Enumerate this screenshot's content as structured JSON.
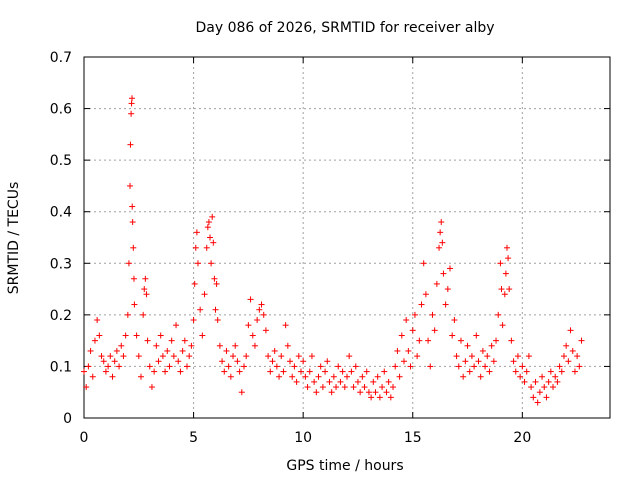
{
  "chart_data": {
    "type": "scatter",
    "title": "Day 086 of 2026, SRMTID for receiver alby",
    "xlabel": "GPS time / hours",
    "ylabel": "SRMTID / TECUs",
    "xlim": [
      0,
      24
    ],
    "ylim": [
      0,
      0.7
    ],
    "xticks": [
      0,
      5,
      10,
      15,
      20
    ],
    "yticks": [
      0,
      0.1,
      0.2,
      0.3,
      0.4,
      0.5,
      0.6,
      0.7
    ],
    "grid": true,
    "marker": "+",
    "color": "#ff0000",
    "series": [
      {
        "name": "SRMTID",
        "points": [
          [
            0.0,
            0.09
          ],
          [
            0.1,
            0.06
          ],
          [
            0.2,
            0.1
          ],
          [
            0.3,
            0.13
          ],
          [
            0.4,
            0.08
          ],
          [
            0.5,
            0.15
          ],
          [
            0.6,
            0.19
          ],
          [
            0.7,
            0.16
          ],
          [
            0.8,
            0.12
          ],
          [
            0.9,
            0.11
          ],
          [
            1.0,
            0.09
          ],
          [
            1.1,
            0.1
          ],
          [
            1.2,
            0.12
          ],
          [
            1.3,
            0.08
          ],
          [
            1.4,
            0.11
          ],
          [
            1.5,
            0.13
          ],
          [
            1.6,
            0.1
          ],
          [
            1.7,
            0.14
          ],
          [
            1.8,
            0.12
          ],
          [
            1.9,
            0.16
          ],
          [
            2.0,
            0.2
          ],
          [
            2.05,
            0.3
          ],
          [
            2.1,
            0.45
          ],
          [
            2.12,
            0.53
          ],
          [
            2.15,
            0.59
          ],
          [
            2.17,
            0.61
          ],
          [
            2.19,
            0.62
          ],
          [
            2.2,
            0.41
          ],
          [
            2.22,
            0.38
          ],
          [
            2.25,
            0.33
          ],
          [
            2.28,
            0.27
          ],
          [
            2.3,
            0.22
          ],
          [
            2.4,
            0.16
          ],
          [
            2.5,
            0.12
          ],
          [
            2.6,
            0.08
          ],
          [
            2.7,
            0.2
          ],
          [
            2.75,
            0.25
          ],
          [
            2.8,
            0.27
          ],
          [
            2.85,
            0.24
          ],
          [
            2.9,
            0.15
          ],
          [
            3.0,
            0.1
          ],
          [
            3.1,
            0.06
          ],
          [
            3.2,
            0.09
          ],
          [
            3.3,
            0.14
          ],
          [
            3.4,
            0.11
          ],
          [
            3.5,
            0.16
          ],
          [
            3.6,
            0.12
          ],
          [
            3.7,
            0.09
          ],
          [
            3.8,
            0.13
          ],
          [
            3.9,
            0.1
          ],
          [
            4.0,
            0.15
          ],
          [
            4.1,
            0.12
          ],
          [
            4.2,
            0.18
          ],
          [
            4.3,
            0.11
          ],
          [
            4.4,
            0.09
          ],
          [
            4.5,
            0.13
          ],
          [
            4.6,
            0.15
          ],
          [
            4.7,
            0.1
          ],
          [
            4.8,
            0.12
          ],
          [
            4.9,
            0.14
          ],
          [
            5.0,
            0.19
          ],
          [
            5.05,
            0.26
          ],
          [
            5.1,
            0.33
          ],
          [
            5.15,
            0.36
          ],
          [
            5.2,
            0.3
          ],
          [
            5.3,
            0.21
          ],
          [
            5.4,
            0.16
          ],
          [
            5.5,
            0.24
          ],
          [
            5.6,
            0.33
          ],
          [
            5.65,
            0.37
          ],
          [
            5.7,
            0.38
          ],
          [
            5.75,
            0.35
          ],
          [
            5.8,
            0.3
          ],
          [
            5.85,
            0.39
          ],
          [
            5.9,
            0.34
          ],
          [
            5.95,
            0.27
          ],
          [
            6.0,
            0.21
          ],
          [
            6.05,
            0.26
          ],
          [
            6.1,
            0.19
          ],
          [
            6.2,
            0.14
          ],
          [
            6.3,
            0.11
          ],
          [
            6.4,
            0.09
          ],
          [
            6.5,
            0.13
          ],
          [
            6.6,
            0.1
          ],
          [
            6.7,
            0.08
          ],
          [
            6.8,
            0.12
          ],
          [
            6.9,
            0.14
          ],
          [
            7.0,
            0.11
          ],
          [
            7.1,
            0.09
          ],
          [
            7.2,
            0.05
          ],
          [
            7.3,
            0.1
          ],
          [
            7.4,
            0.12
          ],
          [
            7.5,
            0.18
          ],
          [
            7.6,
            0.23
          ],
          [
            7.7,
            0.16
          ],
          [
            7.8,
            0.14
          ],
          [
            7.9,
            0.19
          ],
          [
            8.0,
            0.21
          ],
          [
            8.1,
            0.22
          ],
          [
            8.2,
            0.2
          ],
          [
            8.3,
            0.17
          ],
          [
            8.4,
            0.12
          ],
          [
            8.5,
            0.09
          ],
          [
            8.6,
            0.11
          ],
          [
            8.7,
            0.13
          ],
          [
            8.8,
            0.1
          ],
          [
            8.9,
            0.08
          ],
          [
            9.0,
            0.12
          ],
          [
            9.1,
            0.09
          ],
          [
            9.2,
            0.18
          ],
          [
            9.3,
            0.14
          ],
          [
            9.4,
            0.11
          ],
          [
            9.5,
            0.08
          ],
          [
            9.6,
            0.1
          ],
          [
            9.7,
            0.07
          ],
          [
            9.8,
            0.12
          ],
          [
            9.9,
            0.09
          ],
          [
            10.0,
            0.11
          ],
          [
            10.1,
            0.08
          ],
          [
            10.2,
            0.06
          ],
          [
            10.3,
            0.09
          ],
          [
            10.4,
            0.12
          ],
          [
            10.5,
            0.07
          ],
          [
            10.6,
            0.05
          ],
          [
            10.7,
            0.08
          ],
          [
            10.8,
            0.1
          ],
          [
            10.9,
            0.06
          ],
          [
            11.0,
            0.09
          ],
          [
            11.1,
            0.11
          ],
          [
            11.2,
            0.07
          ],
          [
            11.3,
            0.05
          ],
          [
            11.4,
            0.08
          ],
          [
            11.5,
            0.06
          ],
          [
            11.6,
            0.1
          ],
          [
            11.7,
            0.07
          ],
          [
            11.8,
            0.09
          ],
          [
            11.9,
            0.06
          ],
          [
            12.0,
            0.08
          ],
          [
            12.1,
            0.12
          ],
          [
            12.2,
            0.09
          ],
          [
            12.3,
            0.06
          ],
          [
            12.4,
            0.1
          ],
          [
            12.5,
            0.07
          ],
          [
            12.6,
            0.05
          ],
          [
            12.7,
            0.08
          ],
          [
            12.8,
            0.06
          ],
          [
            12.9,
            0.09
          ],
          [
            13.0,
            0.05
          ],
          [
            13.1,
            0.04
          ],
          [
            13.2,
            0.07
          ],
          [
            13.3,
            0.05
          ],
          [
            13.4,
            0.08
          ],
          [
            13.5,
            0.04
          ],
          [
            13.6,
            0.06
          ],
          [
            13.7,
            0.09
          ],
          [
            13.8,
            0.05
          ],
          [
            13.9,
            0.07
          ],
          [
            14.0,
            0.04
          ],
          [
            14.1,
            0.06
          ],
          [
            14.2,
            0.1
          ],
          [
            14.3,
            0.13
          ],
          [
            14.4,
            0.08
          ],
          [
            14.5,
            0.16
          ],
          [
            14.6,
            0.11
          ],
          [
            14.7,
            0.19
          ],
          [
            14.8,
            0.13
          ],
          [
            14.9,
            0.1
          ],
          [
            15.0,
            0.17
          ],
          [
            15.1,
            0.2
          ],
          [
            15.2,
            0.12
          ],
          [
            15.3,
            0.15
          ],
          [
            15.4,
            0.22
          ],
          [
            15.5,
            0.3
          ],
          [
            15.6,
            0.24
          ],
          [
            15.7,
            0.15
          ],
          [
            15.8,
            0.1
          ],
          [
            15.9,
            0.2
          ],
          [
            16.0,
            0.17
          ],
          [
            16.1,
            0.26
          ],
          [
            16.2,
            0.33
          ],
          [
            16.25,
            0.36
          ],
          [
            16.3,
            0.38
          ],
          [
            16.35,
            0.34
          ],
          [
            16.4,
            0.28
          ],
          [
            16.5,
            0.22
          ],
          [
            16.6,
            0.25
          ],
          [
            16.7,
            0.29
          ],
          [
            16.8,
            0.16
          ],
          [
            16.9,
            0.19
          ],
          [
            17.0,
            0.12
          ],
          [
            17.1,
            0.1
          ],
          [
            17.2,
            0.15
          ],
          [
            17.3,
            0.08
          ],
          [
            17.4,
            0.11
          ],
          [
            17.5,
            0.14
          ],
          [
            17.6,
            0.09
          ],
          [
            17.7,
            0.12
          ],
          [
            17.8,
            0.1
          ],
          [
            17.9,
            0.16
          ],
          [
            18.0,
            0.11
          ],
          [
            18.1,
            0.08
          ],
          [
            18.2,
            0.13
          ],
          [
            18.3,
            0.1
          ],
          [
            18.4,
            0.12
          ],
          [
            18.5,
            0.09
          ],
          [
            18.6,
            0.14
          ],
          [
            18.7,
            0.11
          ],
          [
            18.8,
            0.15
          ],
          [
            18.9,
            0.2
          ],
          [
            19.0,
            0.3
          ],
          [
            19.05,
            0.25
          ],
          [
            19.1,
            0.18
          ],
          [
            19.2,
            0.24
          ],
          [
            19.25,
            0.28
          ],
          [
            19.3,
            0.33
          ],
          [
            19.35,
            0.31
          ],
          [
            19.4,
            0.25
          ],
          [
            19.5,
            0.15
          ],
          [
            19.6,
            0.11
          ],
          [
            19.7,
            0.09
          ],
          [
            19.8,
            0.12
          ],
          [
            19.9,
            0.08
          ],
          [
            20.0,
            0.1
          ],
          [
            20.1,
            0.07
          ],
          [
            20.2,
            0.09
          ],
          [
            20.3,
            0.12
          ],
          [
            20.4,
            0.06
          ],
          [
            20.5,
            0.04
          ],
          [
            20.6,
            0.07
          ],
          [
            20.7,
            0.03
          ],
          [
            20.8,
            0.05
          ],
          [
            20.9,
            0.08
          ],
          [
            21.0,
            0.06
          ],
          [
            21.1,
            0.04
          ],
          [
            21.2,
            0.07
          ],
          [
            21.3,
            0.09
          ],
          [
            21.4,
            0.06
          ],
          [
            21.5,
            0.08
          ],
          [
            21.6,
            0.07
          ],
          [
            21.7,
            0.1
          ],
          [
            21.8,
            0.09
          ],
          [
            21.9,
            0.12
          ],
          [
            22.0,
            0.14
          ],
          [
            22.1,
            0.11
          ],
          [
            22.2,
            0.17
          ],
          [
            22.3,
            0.13
          ],
          [
            22.4,
            0.09
          ],
          [
            22.5,
            0.12
          ],
          [
            22.6,
            0.1
          ],
          [
            22.7,
            0.15
          ]
        ]
      }
    ]
  }
}
